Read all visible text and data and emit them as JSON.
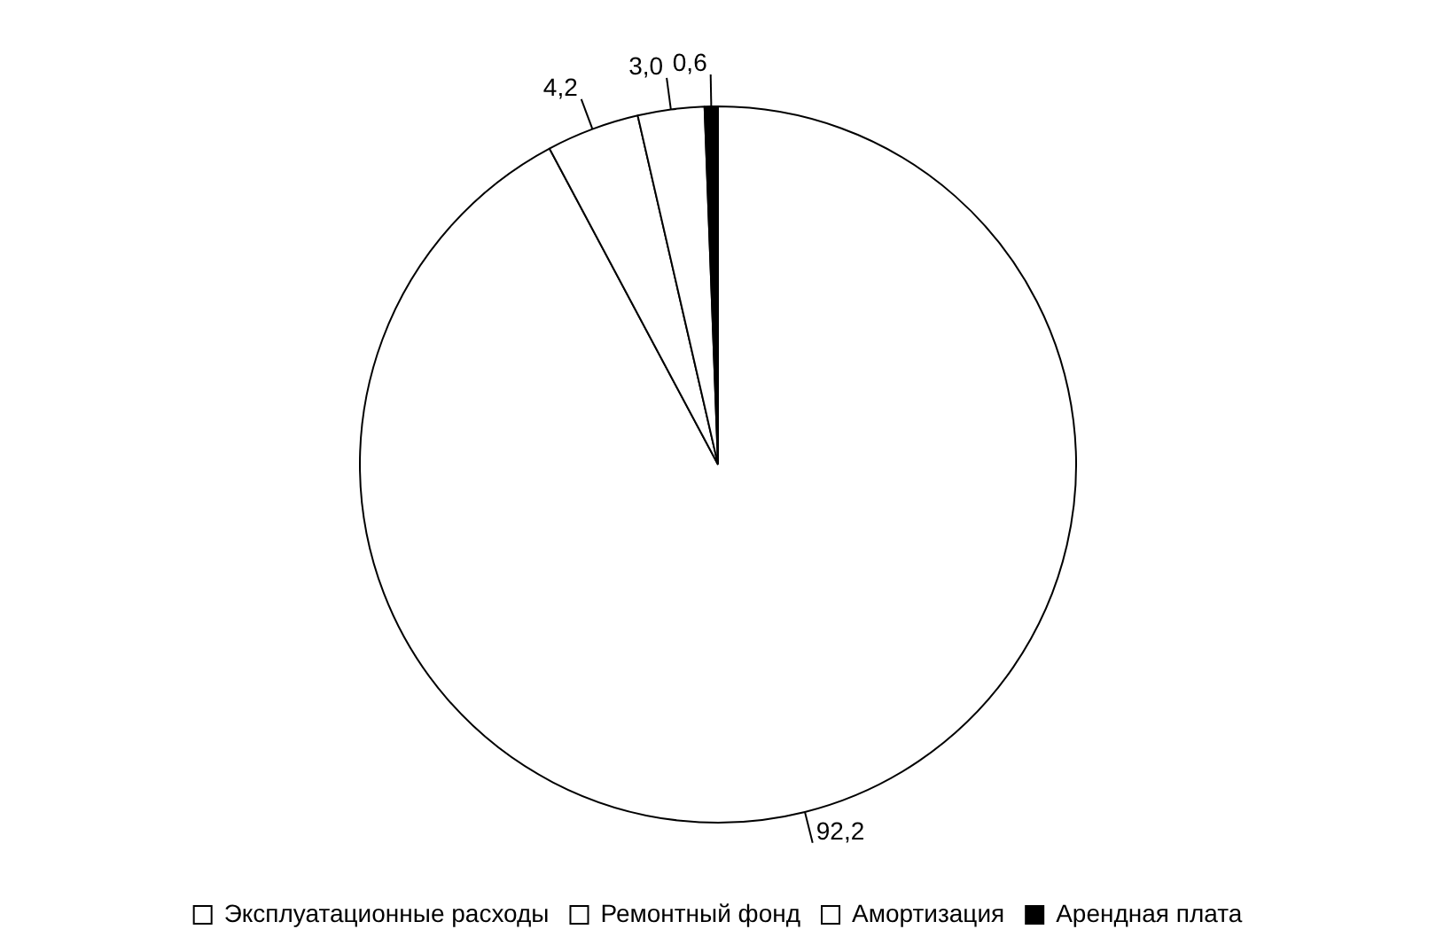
{
  "chart_data": {
    "type": "pie",
    "categories": [
      "Эксплуатационные расходы",
      "Ремонтный фонд",
      "Амортизация",
      "Арендная плата"
    ],
    "values": [
      92.2,
      4.2,
      3.0,
      0.6
    ],
    "colors": [
      "#ffffff",
      "#ffffff",
      "#ffffff",
      "#000000"
    ],
    "value_labels": [
      "92,2",
      "4,2",
      "3,0",
      "0,6"
    ],
    "legend": "bottom"
  }
}
